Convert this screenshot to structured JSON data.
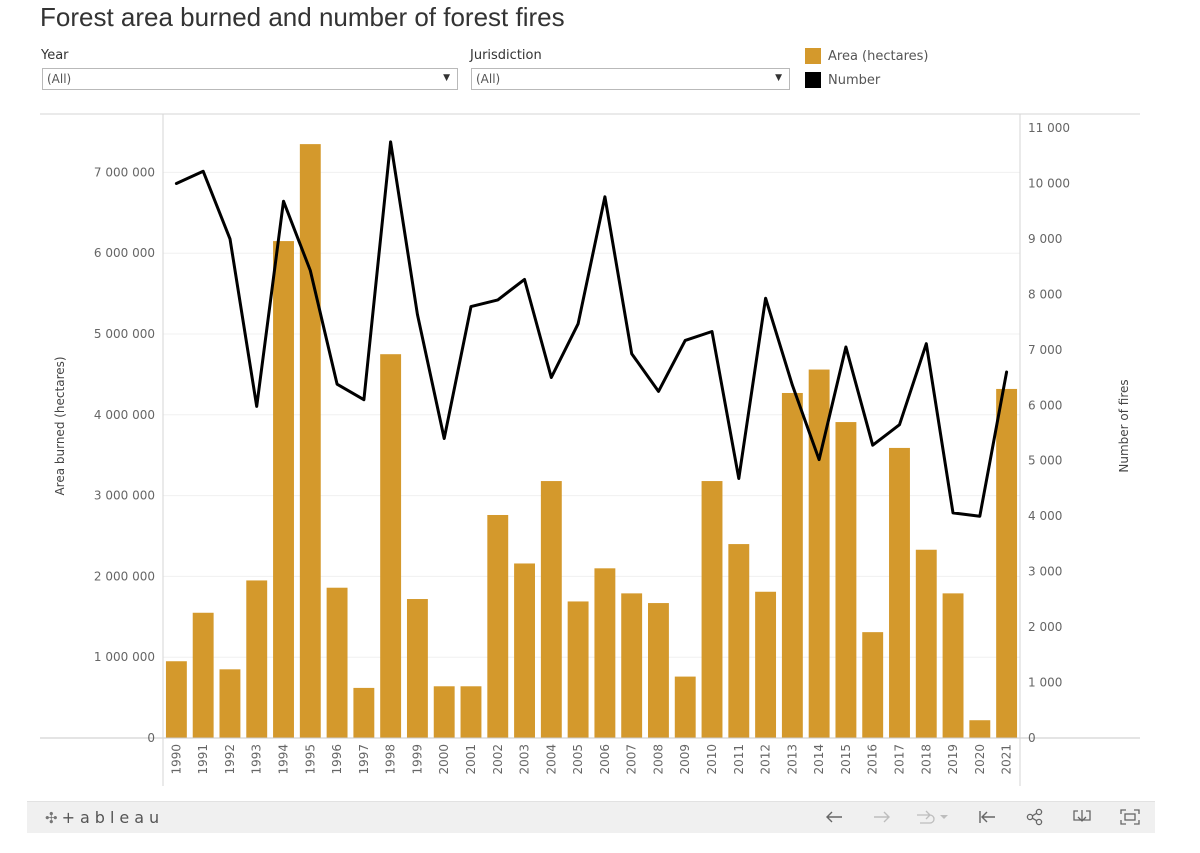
{
  "title": "Forest area burned and number of forest fires",
  "filters": {
    "year": {
      "label": "Year",
      "value": "(All)"
    },
    "jurisdiction": {
      "label": "Jurisdiction",
      "value": "(All)"
    }
  },
  "legend": [
    {
      "label": "Area (hectares)",
      "color": "#d4992c"
    },
    {
      "label": "Number",
      "color": "#000000"
    }
  ],
  "chart_data": {
    "type": "bar",
    "categories": [
      "1990",
      "1991",
      "1992",
      "1993",
      "1994",
      "1995",
      "1996",
      "1997",
      "1998",
      "1999",
      "2000",
      "2001",
      "2002",
      "2003",
      "2004",
      "2005",
      "2006",
      "2007",
      "2008",
      "2009",
      "2010",
      "2011",
      "2012",
      "2013",
      "2014",
      "2015",
      "2016",
      "2017",
      "2018",
      "2019",
      "2020",
      "2021"
    ],
    "series": [
      {
        "name": "Area (hectares)",
        "type": "bar",
        "axis": "left",
        "color": "#d4992c",
        "values": [
          950000,
          1550000,
          850000,
          1950000,
          6150000,
          7350000,
          1860000,
          620000,
          4750000,
          1720000,
          640000,
          640000,
          2760000,
          2160000,
          3180000,
          1690000,
          2100000,
          1790000,
          1670000,
          760000,
          3180000,
          2400000,
          1810000,
          4270000,
          4560000,
          3910000,
          1310000,
          3590000,
          2330000,
          1790000,
          220000,
          4320000
        ]
      },
      {
        "name": "Number",
        "type": "line",
        "axis": "right",
        "color": "#000000",
        "values": [
          10000,
          10220,
          9000,
          5980,
          9680,
          8430,
          6380,
          6100,
          10750,
          7640,
          5400,
          7780,
          7900,
          8270,
          6500,
          7470,
          9760,
          6930,
          6250,
          7170,
          7330,
          4680,
          7930,
          6360,
          5020,
          7050,
          5280,
          5650,
          7110,
          4060,
          4000,
          6600
        ]
      }
    ],
    "ylabel": "Area burned (hectares)",
    "y2label": "Number of fires",
    "ylim": [
      0,
      7500000
    ],
    "y2lim": [
      0,
      11000
    ],
    "yticks": [
      0,
      1000000,
      2000000,
      3000000,
      4000000,
      5000000,
      6000000,
      7000000
    ],
    "y2ticks": [
      0,
      1000,
      2000,
      3000,
      4000,
      5000,
      6000,
      7000,
      8000,
      9000,
      10000,
      11000
    ],
    "grid": true
  },
  "toolbar": {
    "brand": "+ableau",
    "brand_icon": "tableau-logo-icon",
    "buttons": [
      "undo-icon",
      "redo-icon",
      "revert-icon",
      "revert-all-icon",
      "share-icon",
      "download-icon",
      "fullscreen-icon"
    ]
  }
}
